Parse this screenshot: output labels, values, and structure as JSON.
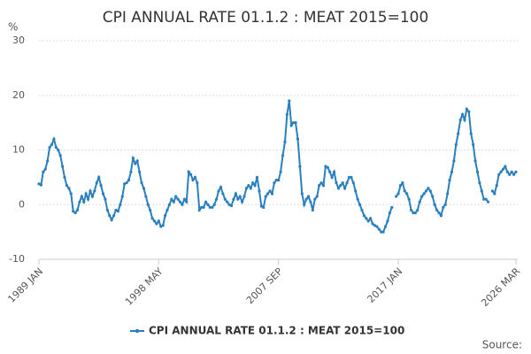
{
  "chart_data": {
    "type": "line",
    "title": "CPI ANNUAL RATE 01.1.2 : MEAT 2015=100",
    "y_unit": "%",
    "source": "Source:",
    "categories": [
      "1989 JAN",
      null,
      null,
      null,
      null,
      null,
      null,
      null,
      null,
      null,
      null,
      null,
      null,
      null,
      null,
      null,
      null,
      null,
      null,
      null,
      null,
      null,
      null,
      null,
      null,
      null,
      null,
      null,
      null,
      null,
      null,
      null,
      null,
      null,
      null,
      null,
      null,
      null,
      null,
      null,
      null,
      null,
      null,
      null,
      null,
      null,
      null,
      null,
      null,
      null,
      null,
      null,
      null,
      null,
      null,
      null,
      "1998 MAY",
      null,
      null,
      null,
      null,
      null,
      null,
      null,
      null,
      null,
      null,
      null,
      null,
      null,
      null,
      null,
      null,
      null,
      null,
      null,
      null,
      null,
      null,
      null,
      null,
      null,
      null,
      null,
      null,
      null,
      null,
      null,
      null,
      null,
      null,
      null,
      null,
      null,
      null,
      null,
      null,
      null,
      null,
      null,
      null,
      null,
      null,
      null,
      null,
      null,
      null,
      null,
      null,
      null,
      null,
      null,
      "2007 SEP",
      null,
      null,
      null,
      null,
      null,
      null,
      null,
      null,
      null,
      null,
      null,
      null,
      null,
      null,
      null,
      null,
      null,
      null,
      null,
      null,
      null,
      null,
      null,
      null,
      null,
      null,
      null,
      null,
      null,
      null,
      null,
      null,
      null,
      null,
      null,
      null,
      null,
      null,
      null,
      null,
      null,
      null,
      null,
      null,
      null,
      null,
      null,
      null,
      null,
      null,
      null,
      null,
      null,
      null,
      null,
      "2017 JAN",
      null,
      null,
      null,
      null,
      null,
      null,
      null,
      null,
      null,
      null,
      null,
      null,
      null,
      null,
      null,
      null,
      null,
      null,
      null,
      null,
      null,
      null,
      null,
      null,
      null,
      null,
      null,
      null,
      null,
      null,
      null,
      null,
      null,
      null,
      null,
      null,
      null,
      null,
      null,
      null,
      null,
      null,
      null,
      null,
      null,
      null,
      null,
      null,
      null,
      null,
      null,
      null,
      null,
      null,
      "2026 MAR"
    ],
    "series": [
      {
        "name": "CPI ANNUAL RATE 01.1.2 : MEAT 2015=100",
        "color": "#2a7fbf",
        "values": [
          3.8,
          3.6,
          6,
          6.5,
          8,
          10.5,
          11,
          12,
          10.5,
          10,
          9,
          7,
          5,
          3.5,
          3,
          2,
          -1.2,
          -1.5,
          -1,
          0.5,
          1.5,
          0.5,
          2,
          1,
          2.5,
          1.5,
          2.5,
          4,
          5,
          3.5,
          2,
          1,
          -1,
          -2,
          -2.8,
          -2,
          -1,
          -1.2,
          0,
          1.5,
          3.8,
          4,
          4.5,
          6,
          8.5,
          7.5,
          8,
          6,
          4,
          3,
          1.5,
          0,
          -1,
          -2.5,
          -3,
          -3.5,
          -3,
          -4,
          -3.8,
          -2,
          -1,
          0,
          1,
          0.5,
          1.5,
          1,
          0.5,
          0,
          1,
          0.5,
          6,
          5.5,
          4.5,
          5,
          4,
          -1,
          -0.5,
          -0.5,
          0.5,
          0,
          -0.5,
          -0.5,
          0,
          1,
          2.5,
          3.2,
          2,
          1,
          0.5,
          0,
          -0.2,
          1,
          2,
          1,
          1.5,
          0.5,
          1.5,
          3,
          3.5,
          3,
          4,
          3.5,
          5,
          2.5,
          -0.3,
          -0.5,
          1.5,
          2,
          2.5,
          2,
          4,
          4.5,
          4.5,
          6,
          9,
          11.5,
          16.5,
          19,
          14.5,
          15,
          15,
          12,
          7,
          2,
          0,
          1,
          1.5,
          0.5,
          -1,
          1,
          1.5,
          3.5,
          4,
          3.5,
          7,
          6.8,
          6,
          5,
          6,
          4,
          3,
          3.5,
          4,
          3,
          4,
          5,
          5,
          4,
          2.5,
          1,
          0,
          -1,
          -2,
          -2.5,
          -3,
          -2.5,
          -3.5,
          -3.8,
          -4,
          -4.5,
          -5,
          -5,
          -4,
          -3,
          -1.5,
          -0.5,
          null,
          1.5,
          2,
          3.5,
          4,
          2.5,
          2,
          1,
          -1,
          -1.5,
          -1.5,
          -1,
          0.5,
          1.5,
          2,
          2.5,
          3,
          2.5,
          1.5,
          0,
          -1,
          -1.5,
          -2,
          -0.5,
          0,
          2,
          4.5,
          6,
          8,
          11,
          13,
          15.5,
          16.5,
          15.5,
          17.5,
          17,
          13,
          11,
          8,
          6,
          4,
          2.5,
          1,
          1,
          0.5,
          null,
          2.5,
          2,
          3.5,
          5.5,
          6,
          6.5,
          7,
          6,
          5.5,
          6,
          5.5,
          6
        ]
      }
    ],
    "ylim": [
      -10,
      30
    ],
    "yticks": [
      -10,
      0,
      10,
      20,
      30
    ],
    "grid": true
  }
}
